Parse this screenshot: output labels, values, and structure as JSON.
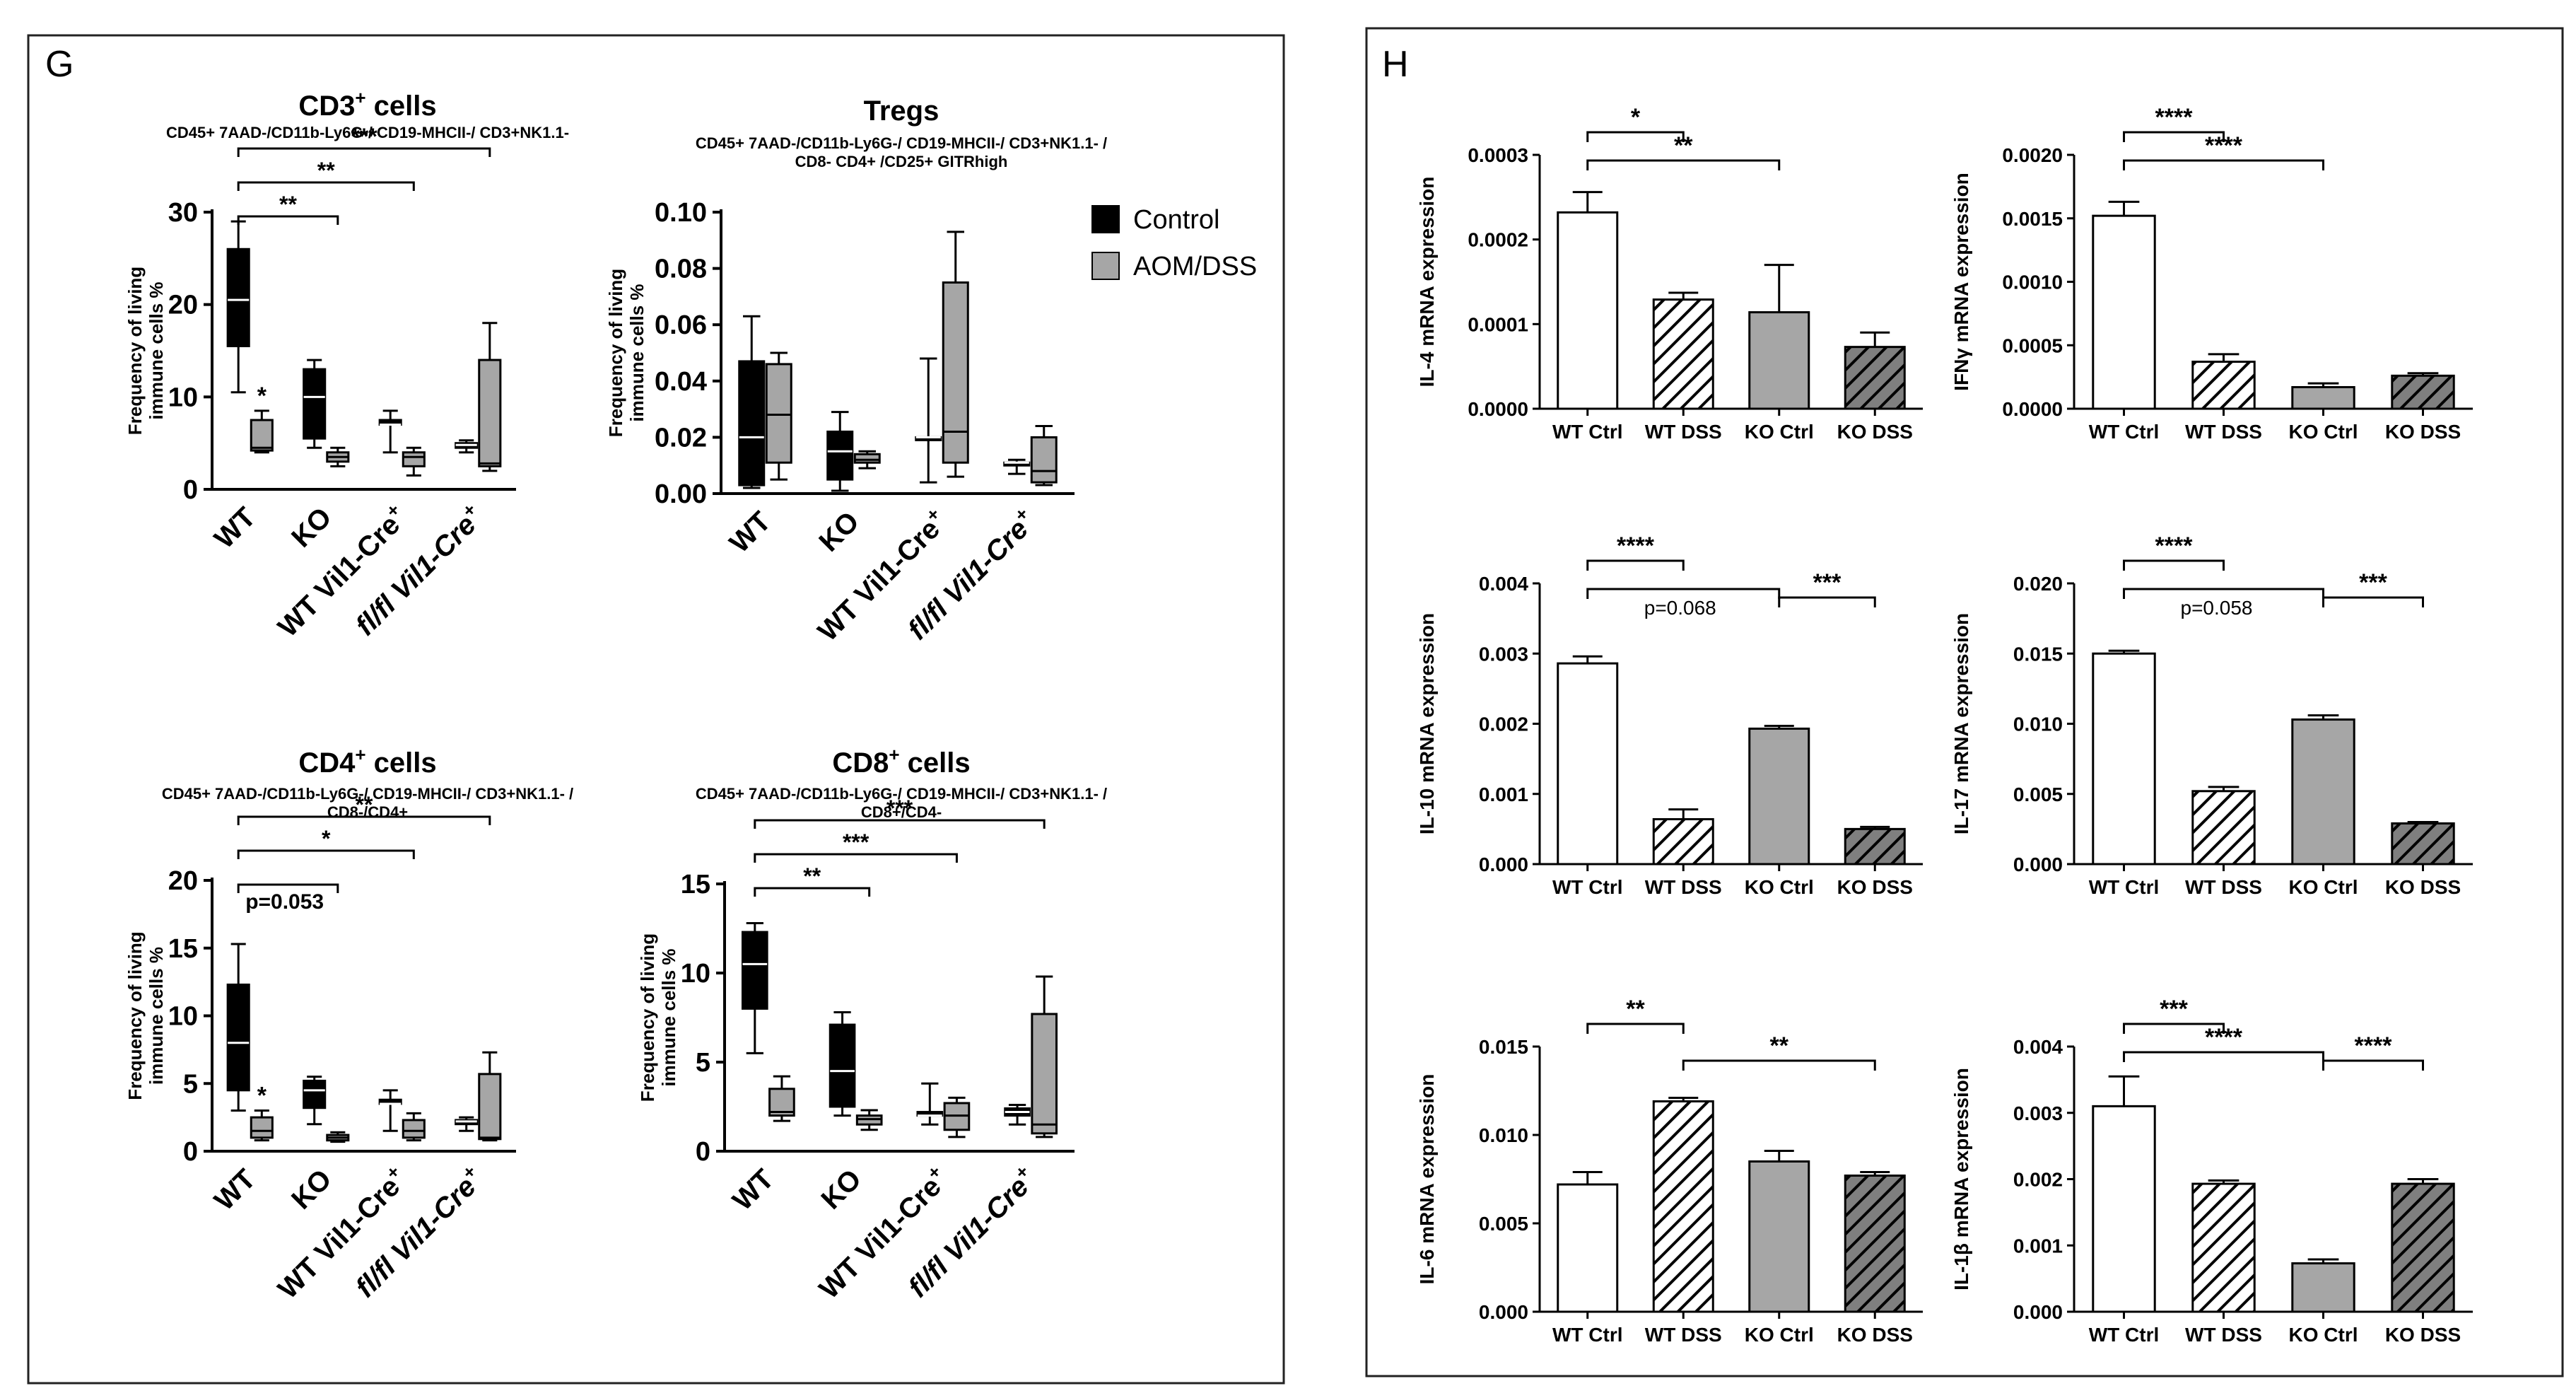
{
  "panels": {
    "G": {
      "label": "G"
    },
    "H": {
      "label": "H"
    }
  },
  "legend": {
    "items": [
      {
        "name": "Control",
        "color": "#000000"
      },
      {
        "name": "AOM/DSS",
        "color": "#a6a6a6"
      }
    ]
  },
  "colors": {
    "control": "#000000",
    "aomdss": "#a6a6a6",
    "wt_ctrl": "#ffffff",
    "ko_ctrl": "#a6a6a6",
    "ko_dss": "#7f7f7f"
  },
  "chart_data": [
    {
      "id": "cd3",
      "type": "box",
      "title": "CD3",
      "title_sup": "+",
      "title_suffix": " cells",
      "subtitle": [
        "CD45+ 7AAD-/CD11b-Ly6G-/ CD19-MHCII-/ CD3+NK1.1-"
      ],
      "ylabel": [
        "Frequency of living",
        "immune cells %"
      ],
      "ylim": [
        0,
        30
      ],
      "yticks": [
        0,
        10,
        20,
        30
      ],
      "categories": [
        {
          "text": "WT"
        },
        {
          "text": "KO"
        },
        {
          "text": "WT Vil1-Cre",
          "sup": "+"
        },
        {
          "text": "fl/fl Vil1-Cre",
          "sup": "+",
          "italic": true
        }
      ],
      "series": [
        {
          "name": "Control",
          "boxes": [
            {
              "min": 10.5,
              "q1": 15.5,
              "median": 20.5,
              "q3": 26,
              "max": 29
            },
            {
              "min": 4.5,
              "q1": 5.5,
              "median": 10,
              "q3": 13,
              "max": 14
            },
            {
              "min": 4,
              "q1": 7,
              "median": 7,
              "q3": 7.5,
              "max": 8.5
            },
            {
              "min": 4,
              "q1": 4.5,
              "median": 4.8,
              "q3": 5,
              "max": 5.3
            }
          ]
        },
        {
          "name": "AOM/DSS",
          "boxes": [
            {
              "min": 4,
              "q1": 4.2,
              "median": 4.5,
              "q3": 7.5,
              "max": 8.5
            },
            {
              "min": 2.5,
              "q1": 3,
              "median": 3.5,
              "q3": 4,
              "max": 4.5
            },
            {
              "min": 1.5,
              "q1": 2.5,
              "median": 3.5,
              "q3": 4,
              "max": 4.5
            },
            {
              "min": 2,
              "q1": 2.5,
              "median": 2.8,
              "q3": 14,
              "max": 18
            }
          ]
        }
      ],
      "point_labels": [
        {
          "cat": 0,
          "series": 1,
          "text": "*"
        }
      ],
      "brackets": [
        {
          "from": 0,
          "to": 1,
          "text": "**"
        },
        {
          "from": 0,
          "to": 2,
          "text": "**"
        },
        {
          "from": 0,
          "to": 3,
          "text": "***"
        }
      ]
    },
    {
      "id": "tregs",
      "type": "box",
      "title": "Tregs",
      "title_sup": "",
      "title_suffix": "",
      "subtitle": [
        "CD45+ 7AAD-/CD11b-Ly6G-/ CD19-MHCII-/ CD3+NK1.1- /",
        "CD8- CD4+ /CD25+ GITRhigh"
      ],
      "ylabel": [
        "Frequency of living",
        "immune cells %"
      ],
      "ylim": [
        0,
        0.1
      ],
      "yticks": [
        "0.00",
        "0.02",
        "0.04",
        "0.06",
        "0.08",
        "0.10"
      ],
      "categories": [
        {
          "text": "WT"
        },
        {
          "text": "KO"
        },
        {
          "text": "WT Vil1-Cre",
          "sup": "+"
        },
        {
          "text": "fl/fl Vil1-Cre",
          "sup": "+",
          "italic": true
        }
      ],
      "series": [
        {
          "name": "Control",
          "boxes": [
            {
              "min": 0.002,
              "q1": 0.003,
              "median": 0.02,
              "q3": 0.047,
              "max": 0.063
            },
            {
              "min": 0.001,
              "q1": 0.005,
              "median": 0.015,
              "q3": 0.022,
              "max": 0.029
            },
            {
              "min": 0.004,
              "q1": 0.02,
              "median": 0.02,
              "q3": 0.02,
              "max": 0.048
            },
            {
              "min": 0.007,
              "q1": 0.01,
              "median": 0.011,
              "q3": 0.011,
              "max": 0.012
            }
          ]
        },
        {
          "name": "AOM/DSS",
          "boxes": [
            {
              "min": 0.005,
              "q1": 0.011,
              "median": 0.028,
              "q3": 0.046,
              "max": 0.05
            },
            {
              "min": 0.009,
              "q1": 0.011,
              "median": 0.012,
              "q3": 0.014,
              "max": 0.015
            },
            {
              "min": 0.006,
              "q1": 0.011,
              "median": 0.022,
              "q3": 0.075,
              "max": 0.093
            },
            {
              "min": 0.003,
              "q1": 0.004,
              "median": 0.008,
              "q3": 0.02,
              "max": 0.024
            }
          ]
        }
      ],
      "point_labels": [],
      "brackets": []
    },
    {
      "id": "cd4",
      "type": "box",
      "title": "CD4",
      "title_sup": "+",
      "title_suffix": " cells",
      "subtitle": [
        "CD45+ 7AAD-/CD11b-Ly6G-/ CD19-MHCII-/ CD3+NK1.1- /",
        "CD8-/CD4+"
      ],
      "ylabel": [
        "Frequency of living",
        "immune cells %"
      ],
      "ylim": [
        0,
        20
      ],
      "yticks": [
        0,
        5,
        10,
        15,
        20
      ],
      "categories": [
        {
          "text": "WT"
        },
        {
          "text": "KO"
        },
        {
          "text": "WT Vil1-Cre",
          "sup": "+"
        },
        {
          "text": "fl/fl Vil1-Cre",
          "sup": "+",
          "italic": true
        }
      ],
      "series": [
        {
          "name": "Control",
          "boxes": [
            {
              "min": 3,
              "q1": 4.5,
              "median": 8,
              "q3": 12.3,
              "max": 15.3
            },
            {
              "min": 2,
              "q1": 3.2,
              "median": 4.5,
              "q3": 5.2,
              "max": 5.5
            },
            {
              "min": 1.5,
              "q1": 3.5,
              "median": 3.5,
              "q3": 3.8,
              "max": 4.5
            },
            {
              "min": 1.5,
              "q1": 2,
              "median": 2.2,
              "q3": 2.3,
              "max": 2.5
            }
          ]
        },
        {
          "name": "AOM/DSS",
          "boxes": [
            {
              "min": 0.8,
              "q1": 1,
              "median": 1.5,
              "q3": 2.5,
              "max": 3
            },
            {
              "min": 0.7,
              "q1": 0.8,
              "median": 1,
              "q3": 1.2,
              "max": 1.4
            },
            {
              "min": 0.8,
              "q1": 1,
              "median": 1.5,
              "q3": 2.3,
              "max": 2.8
            },
            {
              "min": 0.8,
              "q1": 0.9,
              "median": 1,
              "q3": 5.7,
              "max": 7.3
            }
          ]
        }
      ],
      "point_labels": [
        {
          "cat": 0,
          "series": 1,
          "text": "*"
        }
      ],
      "brackets": [
        {
          "from": 0,
          "to": 1,
          "text": "p=0.053"
        },
        {
          "from": 0,
          "to": 2,
          "text": "*"
        },
        {
          "from": 0,
          "to": 3,
          "text": "**"
        }
      ]
    },
    {
      "id": "cd8",
      "type": "box",
      "title": "CD8",
      "title_sup": "+",
      "title_suffix": " cells",
      "subtitle": [
        "CD45+ 7AAD-/CD11b-Ly6G-/ CD19-MHCII-/ CD3+NK1.1- /",
        "CD8+/CD4-"
      ],
      "ylabel": [
        "Frequency of living",
        "immune cells %"
      ],
      "ylim": [
        0,
        15
      ],
      "yticks": [
        0,
        5,
        10,
        15
      ],
      "categories": [
        {
          "text": "WT"
        },
        {
          "text": "KO"
        },
        {
          "text": "WT Vil1-Cre",
          "sup": "+"
        },
        {
          "text": "fl/fl Vil1-Cre",
          "sup": "+",
          "italic": true
        }
      ],
      "series": [
        {
          "name": "Control",
          "boxes": [
            {
              "min": 5.5,
              "q1": 8,
              "median": 10.5,
              "q3": 12.3,
              "max": 12.8
            },
            {
              "min": 2,
              "q1": 2.5,
              "median": 4.5,
              "q3": 7.1,
              "max": 7.8
            },
            {
              "min": 1.5,
              "q1": 2,
              "median": 2,
              "q3": 2.2,
              "max": 3.8
            },
            {
              "min": 1.5,
              "q1": 2,
              "median": 2.2,
              "q3": 2.4,
              "max": 2.6
            }
          ]
        },
        {
          "name": "AOM/DSS",
          "boxes": [
            {
              "min": 1.7,
              "q1": 2,
              "median": 2.2,
              "q3": 3.5,
              "max": 4.2
            },
            {
              "min": 1.2,
              "q1": 1.5,
              "median": 1.8,
              "q3": 2,
              "max": 2.3
            },
            {
              "min": 0.8,
              "q1": 1.2,
              "median": 2,
              "q3": 2.7,
              "max": 3
            },
            {
              "min": 0.8,
              "q1": 1,
              "median": 1.5,
              "q3": 7.7,
              "max": 9.8
            }
          ]
        }
      ],
      "point_labels": [],
      "brackets": [
        {
          "from": 0,
          "to": 1,
          "text": "**"
        },
        {
          "from": 0,
          "to": 2,
          "text": "***"
        },
        {
          "from": 0,
          "to": 3,
          "text": "***"
        }
      ]
    },
    {
      "id": "il4",
      "type": "bar",
      "ylabel": "IL-4 mRNA expression",
      "ylim": [
        0,
        0.0003
      ],
      "yticks": [
        "0.0000",
        "0.0001",
        "0.0002",
        "0.0003"
      ],
      "categories": [
        "WT Ctrl",
        "WT DSS",
        "KO Ctrl",
        "KO DSS"
      ],
      "values": [
        0.000232,
        0.000129,
        0.000114,
        7.3e-05
      ],
      "errors": [
        2.4e-05,
        8e-06,
        5.6e-05,
        1.7e-05
      ],
      "brackets": [
        {
          "from": 0,
          "to": 1,
          "text": "*"
        },
        {
          "from": 0,
          "to": 2,
          "text": "**"
        }
      ]
    },
    {
      "id": "ifng",
      "type": "bar",
      "ylabel": "IFNγ mRNA expression",
      "ylim": [
        0,
        0.002
      ],
      "yticks": [
        "0.0000",
        "0.0005",
        "0.0010",
        "0.0015",
        "0.0020"
      ],
      "categories": [
        "WT Ctrl",
        "WT DSS",
        "KO Ctrl",
        "KO DSS"
      ],
      "values": [
        0.00152,
        0.00037,
        0.00017,
        0.00026
      ],
      "errors": [
        0.00011,
        6e-05,
        3e-05,
        2e-05
      ],
      "brackets": [
        {
          "from": 0,
          "to": 1,
          "text": "****"
        },
        {
          "from": 0,
          "to": 2,
          "text": "****"
        }
      ]
    },
    {
      "id": "il10",
      "type": "bar",
      "ylabel": "IL-10 mRNA expression",
      "ylim": [
        0,
        0.004
      ],
      "yticks": [
        "0.000",
        "0.001",
        "0.002",
        "0.003",
        "0.004"
      ],
      "categories": [
        "WT Ctrl",
        "WT DSS",
        "KO Ctrl",
        "KO DSS"
      ],
      "values": [
        0.00286,
        0.00064,
        0.00193,
        0.0005
      ],
      "errors": [
        0.0001,
        0.00014,
        4e-05,
        3e-05
      ],
      "brackets": [
        {
          "from": 0,
          "to": 1,
          "text": "****"
        },
        {
          "from": 0,
          "to": 2,
          "text": "p=0.068"
        },
        {
          "from": 2,
          "to": 3,
          "text": "***"
        }
      ]
    },
    {
      "id": "il17",
      "type": "bar",
      "ylabel": "IL-17 mRNA expression",
      "ylim": [
        0,
        0.02
      ],
      "yticks": [
        "0.000",
        "0.005",
        "0.010",
        "0.015",
        "0.020"
      ],
      "categories": [
        "WT Ctrl",
        "WT DSS",
        "KO Ctrl",
        "KO DSS"
      ],
      "values": [
        0.015,
        0.0052,
        0.0103,
        0.0029
      ],
      "errors": [
        0.0002,
        0.0003,
        0.0003,
        0.0001
      ],
      "brackets": [
        {
          "from": 0,
          "to": 1,
          "text": "****"
        },
        {
          "from": 0,
          "to": 2,
          "text": "p=0.058"
        },
        {
          "from": 2,
          "to": 3,
          "text": "***"
        }
      ]
    },
    {
      "id": "il6",
      "type": "bar",
      "ylabel": "IL-6 mRNA expression",
      "ylim": [
        0,
        0.015
      ],
      "yticks": [
        "0.000",
        "0.005",
        "0.010",
        "0.015"
      ],
      "categories": [
        "WT Ctrl",
        "WT DSS",
        "KO Ctrl",
        "KO DSS"
      ],
      "values": [
        0.0072,
        0.0119,
        0.0085,
        0.0077
      ],
      "errors": [
        0.0007,
        0.0002,
        0.0006,
        0.0002
      ],
      "brackets": [
        {
          "from": 0,
          "to": 1,
          "text": "**"
        },
        {
          "from": 1,
          "to": 3,
          "text": "**"
        }
      ]
    },
    {
      "id": "il1b",
      "type": "bar",
      "ylabel": "IL-1β mRNA expression",
      "ylim": [
        0,
        0.004
      ],
      "yticks": [
        "0.000",
        "0.001",
        "0.002",
        "0.003",
        "0.004"
      ],
      "categories": [
        "WT Ctrl",
        "WT DSS",
        "KO Ctrl",
        "KO DSS"
      ],
      "values": [
        0.0031,
        0.00193,
        0.00073,
        0.00193
      ],
      "errors": [
        0.00045,
        5e-05,
        6e-05,
        7e-05
      ],
      "brackets": [
        {
          "from": 0,
          "to": 1,
          "text": "***"
        },
        {
          "from": 0,
          "to": 2,
          "text": "****"
        },
        {
          "from": 2,
          "to": 3,
          "text": "****"
        }
      ]
    }
  ]
}
